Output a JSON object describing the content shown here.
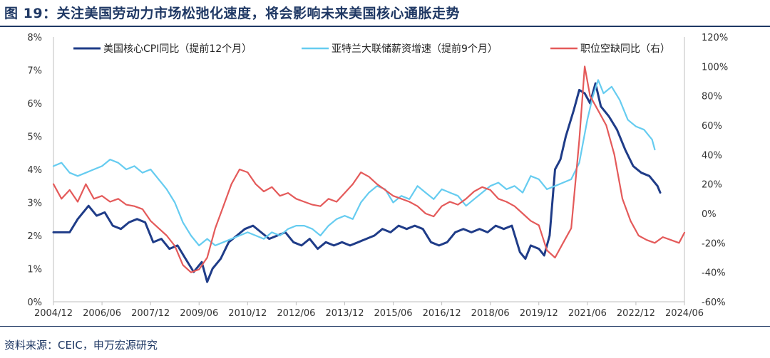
{
  "title": "图 19：关注美国劳动力市场松弛化速度，将会影响未来美国核心通胀走势",
  "source": "资料来源：CEIC，申万宏源研究",
  "chart_data": {
    "type": "line",
    "x_tick_labels": [
      "2004/12",
      "2006/06",
      "2007/12",
      "2009/06",
      "2010/12",
      "2012/06",
      "2013/12",
      "2015/06",
      "2016/12",
      "2018/06",
      "2019/12",
      "2021/06",
      "2022/12",
      "2024/06"
    ],
    "xlim": [
      "2004-12",
      "2024-06"
    ],
    "y_left": {
      "ylim": [
        0,
        8
      ],
      "tick_labels": [
        "0%",
        "1%",
        "2%",
        "3%",
        "4%",
        "5%",
        "6%",
        "7%",
        "8%"
      ]
    },
    "y_right": {
      "ylim": [
        -60,
        120
      ],
      "tick_labels": [
        "-60%",
        "-40%",
        "-20%",
        "0%",
        "20%",
        "40%",
        "60%",
        "80%",
        "100%",
        "120%"
      ]
    },
    "legend_position": "top",
    "series": [
      {
        "name": "美国核心CPI同比（提前12个月）",
        "axis": "left",
        "color": "#1f3c88",
        "points": [
          [
            "2004-12",
            2.1
          ],
          [
            "2005-06",
            2.1
          ],
          [
            "2005-09",
            2.5
          ],
          [
            "2006-01",
            2.9
          ],
          [
            "2006-04",
            2.6
          ],
          [
            "2006-07",
            2.7
          ],
          [
            "2006-10",
            2.3
          ],
          [
            "2007-01",
            2.2
          ],
          [
            "2007-04",
            2.4
          ],
          [
            "2007-07",
            2.5
          ],
          [
            "2007-10",
            2.4
          ],
          [
            "2008-01",
            1.8
          ],
          [
            "2008-04",
            1.9
          ],
          [
            "2008-07",
            1.6
          ],
          [
            "2008-10",
            1.7
          ],
          [
            "2009-01",
            1.3
          ],
          [
            "2009-04",
            0.9
          ],
          [
            "2009-07",
            1.2
          ],
          [
            "2009-09",
            0.6
          ],
          [
            "2009-11",
            1.0
          ],
          [
            "2010-02",
            1.3
          ],
          [
            "2010-05",
            1.8
          ],
          [
            "2010-08",
            2.0
          ],
          [
            "2010-11",
            2.2
          ],
          [
            "2011-02",
            2.3
          ],
          [
            "2011-05",
            2.1
          ],
          [
            "2011-08",
            1.9
          ],
          [
            "2011-11",
            2.0
          ],
          [
            "2012-02",
            2.1
          ],
          [
            "2012-05",
            1.8
          ],
          [
            "2012-08",
            1.7
          ],
          [
            "2012-11",
            1.9
          ],
          [
            "2013-02",
            1.6
          ],
          [
            "2013-05",
            1.8
          ],
          [
            "2013-08",
            1.7
          ],
          [
            "2013-11",
            1.8
          ],
          [
            "2014-02",
            1.7
          ],
          [
            "2014-05",
            1.8
          ],
          [
            "2014-08",
            1.9
          ],
          [
            "2014-11",
            2.0
          ],
          [
            "2015-02",
            2.2
          ],
          [
            "2015-05",
            2.1
          ],
          [
            "2015-08",
            2.3
          ],
          [
            "2015-11",
            2.2
          ],
          [
            "2016-02",
            2.3
          ],
          [
            "2016-05",
            2.2
          ],
          [
            "2016-08",
            1.8
          ],
          [
            "2016-11",
            1.7
          ],
          [
            "2017-02",
            1.8
          ],
          [
            "2017-05",
            2.1
          ],
          [
            "2017-08",
            2.2
          ],
          [
            "2017-11",
            2.1
          ],
          [
            "2018-02",
            2.2
          ],
          [
            "2018-05",
            2.1
          ],
          [
            "2018-08",
            2.3
          ],
          [
            "2018-11",
            2.2
          ],
          [
            "2019-02",
            2.3
          ],
          [
            "2019-05",
            1.5
          ],
          [
            "2019-07",
            1.3
          ],
          [
            "2019-09",
            1.7
          ],
          [
            "2019-12",
            1.6
          ],
          [
            "2020-02",
            1.4
          ],
          [
            "2020-04",
            2.0
          ],
          [
            "2020-06",
            4.0
          ],
          [
            "2020-08",
            4.3
          ],
          [
            "2020-10",
            5.0
          ],
          [
            "2021-01",
            5.8
          ],
          [
            "2021-03",
            6.4
          ],
          [
            "2021-05",
            6.3
          ],
          [
            "2021-07",
            6.0
          ],
          [
            "2021-09",
            6.6
          ],
          [
            "2021-11",
            5.9
          ],
          [
            "2022-02",
            5.6
          ],
          [
            "2022-05",
            5.2
          ],
          [
            "2022-08",
            4.6
          ],
          [
            "2022-11",
            4.1
          ],
          [
            "2023-02",
            3.9
          ],
          [
            "2023-05",
            3.8
          ],
          [
            "2023-08",
            3.5
          ],
          [
            "2023-09",
            3.3
          ]
        ]
      },
      {
        "name": "亚特兰大联储薪资增速（提前9个月）",
        "axis": "left",
        "color": "#66ccf0",
        "points": [
          [
            "2004-12",
            4.1
          ],
          [
            "2005-03",
            4.2
          ],
          [
            "2005-06",
            3.9
          ],
          [
            "2005-09",
            3.8
          ],
          [
            "2005-12",
            3.9
          ],
          [
            "2006-03",
            4.0
          ],
          [
            "2006-06",
            4.1
          ],
          [
            "2006-09",
            4.3
          ],
          [
            "2006-12",
            4.2
          ],
          [
            "2007-03",
            4.0
          ],
          [
            "2007-06",
            4.1
          ],
          [
            "2007-09",
            3.9
          ],
          [
            "2007-12",
            4.0
          ],
          [
            "2008-03",
            3.7
          ],
          [
            "2008-06",
            3.4
          ],
          [
            "2008-09",
            3.0
          ],
          [
            "2008-12",
            2.4
          ],
          [
            "2009-03",
            2.0
          ],
          [
            "2009-06",
            1.7
          ],
          [
            "2009-09",
            1.9
          ],
          [
            "2009-12",
            1.7
          ],
          [
            "2010-03",
            1.8
          ],
          [
            "2010-06",
            1.9
          ],
          [
            "2010-09",
            2.0
          ],
          [
            "2010-12",
            2.1
          ],
          [
            "2011-03",
            2.0
          ],
          [
            "2011-06",
            1.9
          ],
          [
            "2011-09",
            2.1
          ],
          [
            "2011-12",
            2.0
          ],
          [
            "2012-03",
            2.2
          ],
          [
            "2012-06",
            2.3
          ],
          [
            "2012-09",
            2.3
          ],
          [
            "2012-12",
            2.2
          ],
          [
            "2013-03",
            2.0
          ],
          [
            "2013-06",
            2.3
          ],
          [
            "2013-09",
            2.5
          ],
          [
            "2013-12",
            2.6
          ],
          [
            "2014-03",
            2.5
          ],
          [
            "2014-06",
            3.0
          ],
          [
            "2014-09",
            3.3
          ],
          [
            "2014-12",
            3.5
          ],
          [
            "2015-03",
            3.4
          ],
          [
            "2015-06",
            3.0
          ],
          [
            "2015-09",
            3.2
          ],
          [
            "2015-12",
            3.1
          ],
          [
            "2016-03",
            3.5
          ],
          [
            "2016-06",
            3.3
          ],
          [
            "2016-09",
            3.1
          ],
          [
            "2016-12",
            3.4
          ],
          [
            "2017-03",
            3.3
          ],
          [
            "2017-06",
            3.2
          ],
          [
            "2017-09",
            2.9
          ],
          [
            "2017-12",
            3.1
          ],
          [
            "2018-03",
            3.3
          ],
          [
            "2018-06",
            3.5
          ],
          [
            "2018-09",
            3.6
          ],
          [
            "2018-12",
            3.4
          ],
          [
            "2019-03",
            3.5
          ],
          [
            "2019-06",
            3.3
          ],
          [
            "2019-09",
            3.8
          ],
          [
            "2019-12",
            3.7
          ],
          [
            "2020-03",
            3.4
          ],
          [
            "2020-06",
            3.5
          ],
          [
            "2020-09",
            3.6
          ],
          [
            "2020-12",
            3.7
          ],
          [
            "2021-03",
            4.2
          ],
          [
            "2021-06",
            5.5
          ],
          [
            "2021-08",
            6.2
          ],
          [
            "2021-10",
            6.7
          ],
          [
            "2021-12",
            6.3
          ],
          [
            "2022-03",
            6.5
          ],
          [
            "2022-06",
            6.1
          ],
          [
            "2022-09",
            5.5
          ],
          [
            "2022-12",
            5.3
          ],
          [
            "2023-03",
            5.2
          ],
          [
            "2023-06",
            4.9
          ],
          [
            "2023-07",
            4.6
          ]
        ]
      },
      {
        "name": "职位空缺同比（右）",
        "axis": "right",
        "color": "#e45a5a",
        "points": [
          [
            "2004-12",
            20
          ],
          [
            "2005-03",
            10
          ],
          [
            "2005-06",
            16
          ],
          [
            "2005-09",
            8
          ],
          [
            "2005-12",
            20
          ],
          [
            "2006-03",
            10
          ],
          [
            "2006-06",
            12
          ],
          [
            "2006-09",
            8
          ],
          [
            "2006-12",
            10
          ],
          [
            "2007-03",
            6
          ],
          [
            "2007-06",
            5
          ],
          [
            "2007-09",
            3
          ],
          [
            "2007-12",
            -5
          ],
          [
            "2008-03",
            -10
          ],
          [
            "2008-06",
            -15
          ],
          [
            "2008-09",
            -22
          ],
          [
            "2008-12",
            -35
          ],
          [
            "2009-03",
            -40
          ],
          [
            "2009-06",
            -38
          ],
          [
            "2009-09",
            -30
          ],
          [
            "2009-12",
            -10
          ],
          [
            "2010-03",
            5
          ],
          [
            "2010-06",
            20
          ],
          [
            "2010-09",
            30
          ],
          [
            "2010-12",
            28
          ],
          [
            "2011-03",
            20
          ],
          [
            "2011-06",
            15
          ],
          [
            "2011-09",
            18
          ],
          [
            "2011-12",
            12
          ],
          [
            "2012-03",
            14
          ],
          [
            "2012-06",
            10
          ],
          [
            "2012-09",
            8
          ],
          [
            "2012-12",
            6
          ],
          [
            "2013-03",
            5
          ],
          [
            "2013-06",
            10
          ],
          [
            "2013-09",
            8
          ],
          [
            "2013-12",
            14
          ],
          [
            "2014-03",
            20
          ],
          [
            "2014-06",
            28
          ],
          [
            "2014-09",
            25
          ],
          [
            "2014-12",
            20
          ],
          [
            "2015-03",
            16
          ],
          [
            "2015-06",
            12
          ],
          [
            "2015-09",
            10
          ],
          [
            "2015-12",
            8
          ],
          [
            "2016-03",
            5
          ],
          [
            "2016-06",
            0
          ],
          [
            "2016-09",
            -2
          ],
          [
            "2016-12",
            5
          ],
          [
            "2017-03",
            8
          ],
          [
            "2017-06",
            6
          ],
          [
            "2017-09",
            10
          ],
          [
            "2017-12",
            15
          ],
          [
            "2018-03",
            18
          ],
          [
            "2018-06",
            16
          ],
          [
            "2018-09",
            10
          ],
          [
            "2018-12",
            8
          ],
          [
            "2019-03",
            5
          ],
          [
            "2019-06",
            0
          ],
          [
            "2019-09",
            -5
          ],
          [
            "2019-12",
            -8
          ],
          [
            "2020-03",
            -25
          ],
          [
            "2020-06",
            -30
          ],
          [
            "2020-09",
            -20
          ],
          [
            "2020-12",
            -10
          ],
          [
            "2021-03",
            50
          ],
          [
            "2021-05",
            100
          ],
          [
            "2021-07",
            80
          ],
          [
            "2021-10",
            70
          ],
          [
            "2022-01",
            60
          ],
          [
            "2022-04",
            40
          ],
          [
            "2022-07",
            10
          ],
          [
            "2022-10",
            -5
          ],
          [
            "2023-01",
            -15
          ],
          [
            "2023-04",
            -18
          ],
          [
            "2023-07",
            -20
          ],
          [
            "2023-10",
            -16
          ],
          [
            "2024-01",
            -18
          ],
          [
            "2024-04",
            -20
          ],
          [
            "2024-06",
            -13
          ]
        ]
      }
    ]
  }
}
